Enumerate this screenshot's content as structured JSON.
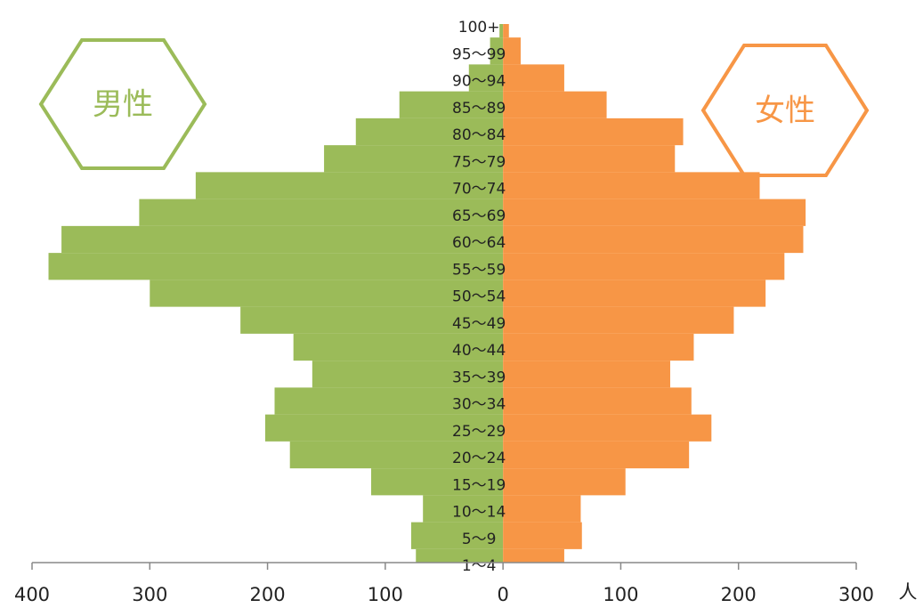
{
  "chart_data": {
    "type": "pyramid",
    "unit": "人",
    "categories": [
      "1～4",
      "5～9",
      "10～14",
      "15～19",
      "20～24",
      "25～29",
      "30～34",
      "35～39",
      "40～44",
      "45～49",
      "50～54",
      "55～59",
      "60～64",
      "65～69",
      "70～74",
      "75～79",
      "80～84",
      "85～89",
      "90～94",
      "95～99",
      "100+"
    ],
    "series": [
      {
        "name": "男性",
        "color": "#9bbb59",
        "values": [
          -74,
          -78,
          -68,
          -112,
          -181,
          -202,
          -194,
          -162,
          -178,
          -223,
          -300,
          -386,
          -375,
          -309,
          -261,
          -152,
          -125,
          -88,
          -29,
          -11,
          -3
        ]
      },
      {
        "name": "女性",
        "color": "#f79646",
        "values": [
          52,
          67,
          66,
          104,
          158,
          177,
          160,
          142,
          162,
          196,
          223,
          239,
          255,
          257,
          218,
          146,
          153,
          88,
          52,
          15,
          5
        ]
      }
    ],
    "xlim": [
      -400,
      300
    ],
    "xticks": [
      {
        "value": -400,
        "label": "400"
      },
      {
        "value": -300,
        "label": "300"
      },
      {
        "value": -200,
        "label": "200"
      },
      {
        "value": -100,
        "label": "100"
      },
      0,
      100,
      200,
      300
    ]
  }
}
